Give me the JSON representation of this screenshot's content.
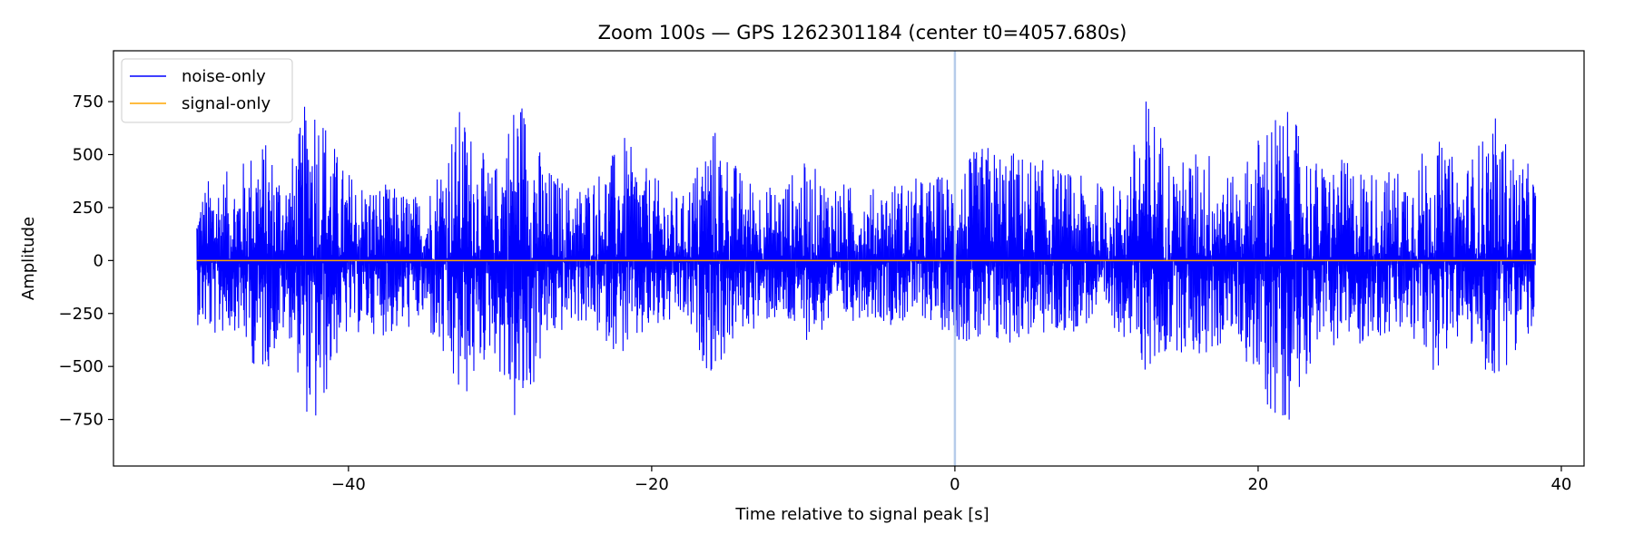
{
  "chart_data": {
    "type": "line",
    "title": "Zoom 100s — GPS 1262301184 (center t0=4057.680s)",
    "xlabel": "Time relative to signal peak [s]",
    "ylabel": "Amplitude",
    "xlim": [
      -55.5,
      41.5
    ],
    "ylim": [
      -970,
      990
    ],
    "xticks": [
      -40,
      -20,
      0,
      20,
      40
    ],
    "xtick_labels": [
      "−40",
      "−20",
      "0",
      "20",
      "40"
    ],
    "yticks": [
      750,
      500,
      250,
      0,
      -250,
      -500,
      -750
    ],
    "ytick_labels": [
      "750",
      "500",
      "250",
      "0",
      "−250",
      "−500",
      "−750"
    ],
    "grid": false,
    "legend_position": "upper-left",
    "vline": {
      "x": 0,
      "color": "#aec7e8"
    },
    "series": [
      {
        "name": "noise-only",
        "color": "#0000ff",
        "x_range": [
          -50,
          38.3
        ],
        "envelope": [
          {
            "x": -50.0,
            "y": 300,
            "ymin": -300
          },
          {
            "x": -49.0,
            "y": 420,
            "ymin": -380
          },
          {
            "x": -47.5,
            "y": 420,
            "ymin": -330
          },
          {
            "x": -45.8,
            "y": 600,
            "ymin": -570
          },
          {
            "x": -44.0,
            "y": 420,
            "ymin": -330
          },
          {
            "x": -42.3,
            "y": 890,
            "ymin": -880
          },
          {
            "x": -40.5,
            "y": 460,
            "ymin": -390
          },
          {
            "x": -39.0,
            "y": 380,
            "ymin": -340
          },
          {
            "x": -37.0,
            "y": 350,
            "ymin": -360
          },
          {
            "x": -35.0,
            "y": 300,
            "ymin": -300
          },
          {
            "x": -32.6,
            "y": 740,
            "ymin": -720
          },
          {
            "x": -30.5,
            "y": 410,
            "ymin": -420
          },
          {
            "x": -28.8,
            "y": 860,
            "ymin": -860
          },
          {
            "x": -27.0,
            "y": 450,
            "ymin": -420
          },
          {
            "x": -25.0,
            "y": 350,
            "ymin": -290
          },
          {
            "x": -23.0,
            "y": 470,
            "ymin": -390
          },
          {
            "x": -21.8,
            "y": 580,
            "ymin": -460
          },
          {
            "x": -20.0,
            "y": 400,
            "ymin": -360
          },
          {
            "x": -18.0,
            "y": 300,
            "ymin": -290
          },
          {
            "x": -16.0,
            "y": 660,
            "ymin": -560
          },
          {
            "x": -14.0,
            "y": 410,
            "ymin": -340
          },
          {
            "x": -12.0,
            "y": 350,
            "ymin": -290
          },
          {
            "x": -10.0,
            "y": 460,
            "ymin": -380
          },
          {
            "x": -8.0,
            "y": 390,
            "ymin": -330
          },
          {
            "x": -6.0,
            "y": 330,
            "ymin": -260
          },
          {
            "x": -4.0,
            "y": 380,
            "ymin": -310
          },
          {
            "x": -2.0,
            "y": 390,
            "ymin": -280
          },
          {
            "x": 0.0,
            "y": 430,
            "ymin": -360
          },
          {
            "x": 2.0,
            "y": 560,
            "ymin": -460
          },
          {
            "x": 4.5,
            "y": 510,
            "ymin": -370
          },
          {
            "x": 7.0,
            "y": 440,
            "ymin": -360
          },
          {
            "x": 9.0,
            "y": 380,
            "ymin": -300
          },
          {
            "x": 11.0,
            "y": 360,
            "ymin": -340
          },
          {
            "x": 12.7,
            "y": 800,
            "ymin": -560
          },
          {
            "x": 14.5,
            "y": 450,
            "ymin": -420
          },
          {
            "x": 16.5,
            "y": 560,
            "ymin": -480
          },
          {
            "x": 18.5,
            "y": 380,
            "ymin": -350
          },
          {
            "x": 20.8,
            "y": 720,
            "ymin": -750
          },
          {
            "x": 22.0,
            "y": 700,
            "ymin": -760
          },
          {
            "x": 24.0,
            "y": 460,
            "ymin": -380
          },
          {
            "x": 26.0,
            "y": 480,
            "ymin": -420
          },
          {
            "x": 28.0,
            "y": 420,
            "ymin": -370
          },
          {
            "x": 30.0,
            "y": 460,
            "ymin": -380
          },
          {
            "x": 31.6,
            "y": 590,
            "ymin": -520
          },
          {
            "x": 33.5,
            "y": 430,
            "ymin": -360
          },
          {
            "x": 35.5,
            "y": 690,
            "ymin": -600
          },
          {
            "x": 37.0,
            "y": 500,
            "ymin": -420
          },
          {
            "x": 38.3,
            "y": 430,
            "ymin": -360
          }
        ]
      },
      {
        "name": "signal-only",
        "color": "#ffa500",
        "x": [
          -50,
          38.3
        ],
        "y": [
          0,
          0
        ]
      }
    ]
  }
}
